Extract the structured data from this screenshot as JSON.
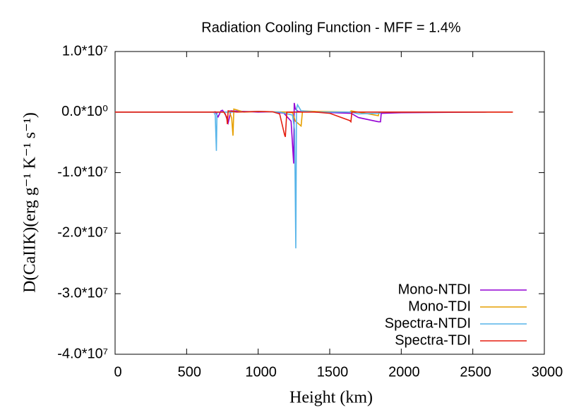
{
  "chart_data": {
    "type": "line",
    "title": "Radiation Cooling Function - MFF = 1.4%",
    "x_label": "Height (km)",
    "y_label": "D(CaIIK)(erg g⁻¹ K⁻¹ s⁻¹)",
    "xlim": [
      0,
      3000
    ],
    "xticks": [
      0,
      500,
      1000,
      1500,
      2000,
      2500,
      3000
    ],
    "ylim": [
      -40000000,
      10000000
    ],
    "yticks": [
      {
        "value": -40000000,
        "label": "-4.0*10⁷"
      },
      {
        "value": -30000000,
        "label": "-3.0*10⁷"
      },
      {
        "value": -20000000,
        "label": "-2.0*10⁷"
      },
      {
        "value": -10000000,
        "label": "-1.0*10⁷"
      },
      {
        "value": 0,
        "label": "0.0*10⁰"
      },
      {
        "value": 10000000,
        "label": "1.0*10⁷"
      }
    ],
    "legend": "bottom-right",
    "series": [
      {
        "name": "Mono-NTDI",
        "color": "#9400d3",
        "x": [
          0,
          690,
          700,
          720,
          740,
          750,
          770,
          790,
          810,
          1000,
          1100,
          1180,
          1230,
          1248,
          1252,
          1260,
          1280,
          1400,
          1650,
          1700,
          1840,
          1855,
          1860,
          2000,
          2590
        ],
        "values": [
          0,
          0,
          50000,
          -800000,
          200000,
          300000,
          -300000,
          -1800000,
          200000,
          0,
          50000,
          -200000,
          -1500000,
          -8500000,
          1500000,
          500000,
          100000,
          0,
          -200000,
          -900000,
          -1600000,
          -1600000,
          -200000,
          -100000,
          0
        ]
      },
      {
        "name": "Mono-TDI",
        "color": "#e69f00",
        "x": [
          0,
          700,
          800,
          815,
          824,
          830,
          900,
          1000,
          1200,
          1240,
          1260,
          1300,
          1310,
          1400,
          1640,
          1650,
          1840,
          1845,
          2780
        ],
        "values": [
          0,
          0,
          0,
          -1000000,
          -3900000,
          500000,
          0,
          100000,
          0,
          -100000,
          -1500000,
          -2300000,
          200000,
          100000,
          0,
          200000,
          -600000,
          0,
          0
        ]
      },
      {
        "name": "Spectra-NTDI",
        "color": "#56b4e9",
        "x": [
          0,
          690,
          700,
          708,
          712,
          720,
          800,
          1000,
          1150,
          1240,
          1255,
          1263,
          1268,
          1275,
          1300,
          1400,
          1650,
          1700,
          1850,
          1860,
          2600
        ],
        "values": [
          0,
          0,
          -500000,
          -6400000,
          -200000,
          0,
          0,
          100000,
          0,
          -500000,
          -3000000,
          -22500000,
          500000,
          1200000,
          200000,
          0,
          0,
          -300000,
          -200000,
          0,
          0
        ]
      },
      {
        "name": "Spectra-TDI",
        "color": "#e51e10",
        "x": [
          0,
          700,
          760,
          780,
          785,
          790,
          850,
          1000,
          1100,
          1150,
          1185,
          1190,
          1200,
          1250,
          1400,
          1500,
          1640,
          1648,
          1655,
          2780
        ],
        "values": [
          0,
          0,
          0,
          -800000,
          -2000000,
          200000,
          0,
          100000,
          50000,
          -300000,
          -3800000,
          -4100000,
          0,
          0,
          0,
          -200000,
          -1400000,
          -1600000,
          0,
          0
        ]
      }
    ]
  }
}
